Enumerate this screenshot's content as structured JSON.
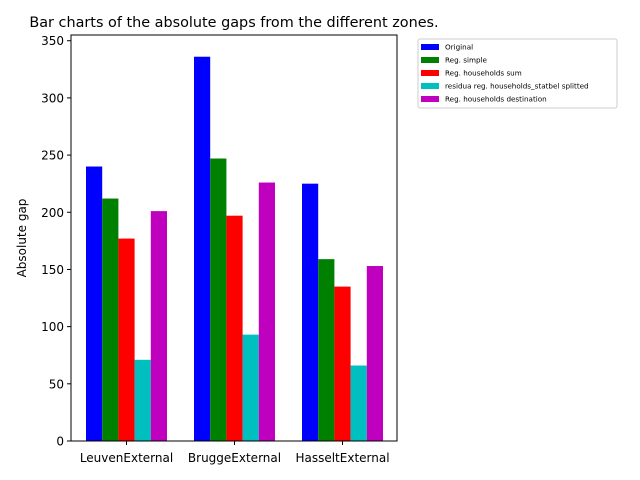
{
  "chart_data": {
    "type": "bar",
    "title": "Bar charts of the absolute gaps from the different zones.",
    "xlabel": "",
    "ylabel": "Absolute gap",
    "ylim": [
      0,
      355
    ],
    "yticks": [
      0,
      50,
      100,
      150,
      200,
      250,
      300,
      350
    ],
    "categories": [
      "LeuvenExternal",
      "BruggeExternal",
      "HasseltExternal"
    ],
    "series": [
      {
        "name": "Original",
        "color": "#0000ff",
        "values": [
          240,
          336,
          225
        ]
      },
      {
        "name": "Reg. simple",
        "color": "#008000",
        "values": [
          212,
          247,
          159
        ]
      },
      {
        "name": "Reg. households sum",
        "color": "#ff0000",
        "values": [
          177,
          197,
          135
        ]
      },
      {
        "name": "residua reg. households_statbel splitted",
        "color": "#00bfbf",
        "values": [
          71,
          93,
          66
        ]
      },
      {
        "name": "Reg. households destination",
        "color": "#bf00bf",
        "values": [
          201,
          226,
          153
        ]
      }
    ],
    "grid": false,
    "legend_position": "outside-top-right"
  }
}
